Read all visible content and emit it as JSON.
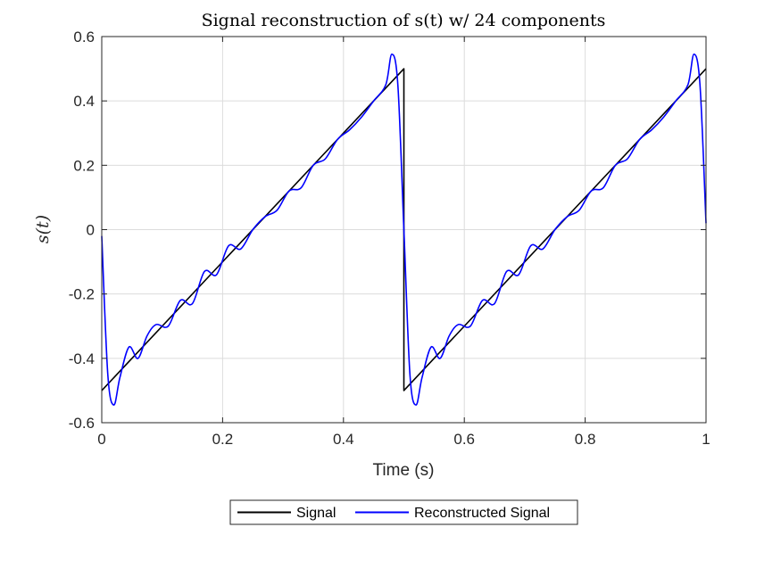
{
  "chart_data": {
    "type": "line",
    "title": "Signal reconstruction of s(t) w/ 24 components",
    "xlabel": "Time (s)",
    "ylabel": "s(t)",
    "xlim": [
      0,
      1
    ],
    "ylim": [
      -0.6,
      0.6
    ],
    "x_ticks": [
      0,
      0.2,
      0.4,
      0.6,
      0.8,
      1
    ],
    "x_tick_labels": [
      "0",
      "0.2",
      "0.4",
      "0.6",
      "0.8",
      "1"
    ],
    "y_ticks": [
      -0.6,
      -0.4,
      -0.2,
      0,
      0.2,
      0.4,
      0.6
    ],
    "y_tick_labels": [
      "-0.6",
      "-0.4",
      "-0.2",
      "0",
      "0.2",
      "0.4",
      "0.6"
    ],
    "grid": true,
    "legend_placement": "bottom-outside",
    "series": [
      {
        "name": "Signal",
        "color": "#000000",
        "x": [
          0,
          0.5,
          0.5,
          1
        ],
        "y": [
          -0.5,
          0.5,
          -0.5,
          0.5
        ]
      },
      {
        "name": "Reconstructed Signal",
        "color": "#0000ff",
        "x": [
          0,
          0.01,
          0.02,
          0.03,
          0.045,
          0.06,
          0.075,
          0.09,
          0.11,
          0.13,
          0.15,
          0.17,
          0.19,
          0.21,
          0.23,
          0.25,
          0.27,
          0.29,
          0.31,
          0.33,
          0.35,
          0.37,
          0.39,
          0.41,
          0.43,
          0.45,
          0.47,
          0.48,
          0.49,
          0.5,
          0.51,
          0.52,
          0.53,
          0.545,
          0.56,
          0.575,
          0.59,
          0.61,
          0.63,
          0.65,
          0.67,
          0.69,
          0.71,
          0.73,
          0.75,
          0.77,
          0.79,
          0.81,
          0.83,
          0.85,
          0.87,
          0.89,
          0.91,
          0.93,
          0.95,
          0.97,
          0.98,
          0.99,
          1.0
        ],
        "y": [
          -0.02,
          -0.45,
          -0.545,
          -0.46,
          -0.365,
          -0.4,
          -0.33,
          -0.295,
          -0.3,
          -0.22,
          -0.23,
          -0.13,
          -0.14,
          -0.05,
          -0.06,
          0.0,
          0.04,
          0.06,
          0.12,
          0.13,
          0.2,
          0.22,
          0.28,
          0.31,
          0.35,
          0.4,
          0.45,
          0.545,
          0.45,
          0.0,
          -0.45,
          -0.545,
          -0.46,
          -0.365,
          -0.4,
          -0.33,
          -0.295,
          -0.3,
          -0.22,
          -0.23,
          -0.13,
          -0.14,
          -0.05,
          -0.06,
          0.0,
          0.04,
          0.06,
          0.12,
          0.13,
          0.2,
          0.22,
          0.28,
          0.31,
          0.35,
          0.4,
          0.45,
          0.545,
          0.45,
          0.02
        ]
      }
    ]
  }
}
